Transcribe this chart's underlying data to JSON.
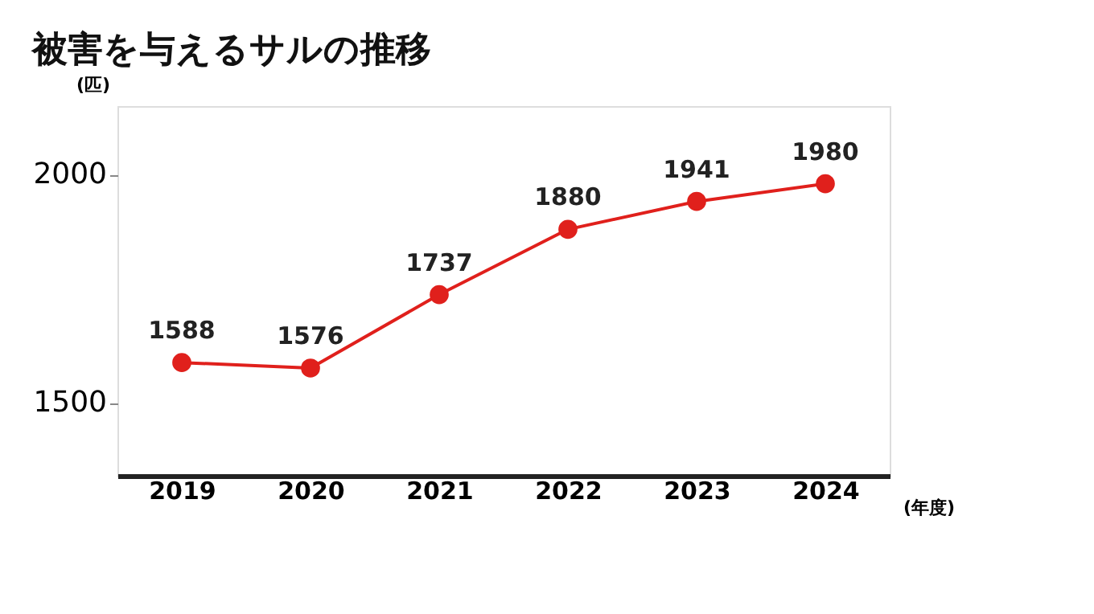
{
  "chart_data": {
    "type": "line",
    "title": "被害を与えるサルの推移",
    "ylabel": "(匹)",
    "xlabel": "(年度)",
    "categories": [
      "2019",
      "2020",
      "2021",
      "2022",
      "2023",
      "2024"
    ],
    "series": [
      {
        "color": "#e0201c",
        "values": [
          1588,
          1576,
          1737,
          1880,
          1941,
          1980
        ]
      }
    ],
    "ylim": [
      1340,
      2150
    ],
    "yticks": [
      1500,
      2000
    ],
    "data_labels": true,
    "marker": "circle",
    "grid": false,
    "legend": false
  }
}
